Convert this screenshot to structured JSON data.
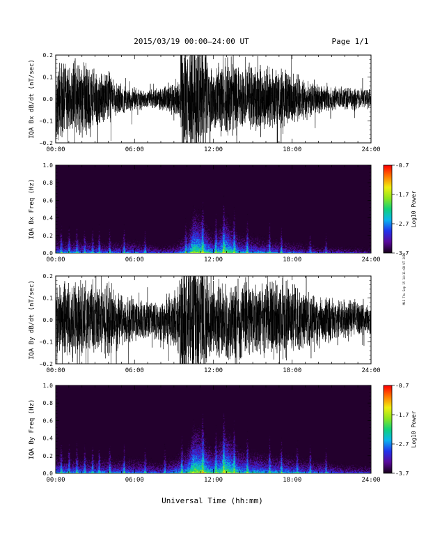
{
  "header": {
    "title": "2015/03/19  00:00–24:00 UT",
    "page_label": "Page 1/1"
  },
  "side_stamp": "ML1 Thu Sep 15 14:11:08 UT 2016",
  "xaxis": {
    "label": "Universal Time (hh:mm)",
    "ticks": [
      "00:00",
      "06:00",
      "12:00",
      "18:00",
      "24:00"
    ]
  },
  "colors": {
    "trace": "#000000",
    "spectrogram_background": "#23002d",
    "colormap": [
      "#1a001e",
      "#5a0a9c",
      "#2233ee",
      "#0bb4ee",
      "#10d27a",
      "#8ee61e",
      "#f0ee10",
      "#ff7a00",
      "#ff0000"
    ]
  },
  "colorbar": {
    "label": "Log10 Power",
    "ticks": [
      "-0.7",
      "-1.7",
      "-2.7",
      "-3.7"
    ]
  },
  "chart_data": [
    {
      "type": "line",
      "name": "IQA Bx dB/dt",
      "ylabel": "IQA Bx dB/dt (nT/sec)",
      "ylim": [
        -0.2,
        0.2
      ],
      "yticks": [
        "0.2",
        "0.1",
        "0.0",
        "−0.1",
        "−0.2"
      ],
      "xlim_hours": [
        0,
        24
      ],
      "amplitude_envelope": {
        "hours": [
          0,
          0.5,
          1,
          1.5,
          2,
          2.5,
          3,
          3.5,
          4,
          4.5,
          5,
          5.5,
          6,
          6.5,
          7,
          7.5,
          8,
          8.5,
          9,
          9.5,
          10,
          10.5,
          11,
          11.5,
          12,
          12.5,
          13,
          13.5,
          14,
          14.5,
          15,
          15.5,
          16,
          16.5,
          17,
          17.5,
          18,
          18.5,
          19,
          19.5,
          20,
          20.5,
          21,
          21.5,
          22,
          22.5,
          23,
          23.5,
          24
        ],
        "values": [
          0.2,
          0.2,
          0.2,
          0.2,
          0.2,
          0.2,
          0.16,
          0.12,
          0.14,
          0.09,
          0.08,
          0.06,
          0.06,
          0.05,
          0.05,
          0.05,
          0.06,
          0.07,
          0.08,
          0.1,
          0.2,
          0.2,
          0.2,
          0.2,
          0.14,
          0.2,
          0.2,
          0.2,
          0.16,
          0.14,
          0.16,
          0.18,
          0.15,
          0.16,
          0.16,
          0.14,
          0.12,
          0.12,
          0.1,
          0.09,
          0.08,
          0.07,
          0.06,
          0.06,
          0.06,
          0.05,
          0.05,
          0.05,
          0.05
        ]
      },
      "saturated_band_hours": [
        9.5,
        11.5
      ]
    },
    {
      "type": "heatmap",
      "name": "IQA Bx Freq",
      "ylabel": "IQA Bx Freq (Hz)",
      "ylim": [
        0.0,
        1.0
      ],
      "yticks": [
        "1.0",
        "0.8",
        "0.6",
        "0.4",
        "0.2",
        "0.0"
      ],
      "xlim_hours": [
        0,
        24
      ],
      "value_label": "Log10 Power",
      "value_range": [
        -3.7,
        -0.7
      ],
      "low_freq_power_hours": [
        0,
        2,
        4,
        6,
        8,
        9,
        10,
        10.5,
        11,
        12,
        13,
        14,
        16,
        18,
        20,
        22,
        24
      ],
      "low_freq_power_values": [
        -2.6,
        -2.7,
        -2.8,
        -2.7,
        -3.0,
        -2.9,
        -2.4,
        -1.6,
        -1.8,
        -2.4,
        -1.8,
        -2.4,
        -2.6,
        -2.8,
        -3.0,
        -3.1,
        -3.2
      ],
      "broadband_bursts_hours": [
        0.4,
        1.0,
        1.6,
        2.2,
        2.8,
        3.3,
        4.1,
        5.2,
        6.8,
        9.9,
        11.2,
        12.2,
        12.8,
        13.6,
        14.6,
        16.3,
        17.2,
        19.4,
        20.6
      ]
    },
    {
      "type": "line",
      "name": "IQA By dB/dt",
      "ylabel": "IQA By dB/dt (nT/sec)",
      "ylim": [
        -0.2,
        0.2
      ],
      "yticks": [
        "0.2",
        "0.1",
        "0.0",
        "−0.1",
        "−0.2"
      ],
      "xlim_hours": [
        0,
        24
      ],
      "amplitude_envelope": {
        "hours": [
          0,
          0.5,
          1,
          1.5,
          2,
          2.5,
          3,
          3.5,
          4,
          4.5,
          5,
          5.5,
          6,
          6.5,
          7,
          7.5,
          8,
          8.5,
          9,
          9.5,
          10,
          10.5,
          11,
          11.5,
          12,
          12.5,
          13,
          13.5,
          14,
          14.5,
          15,
          15.5,
          16,
          16.5,
          17,
          17.5,
          18,
          18.5,
          19,
          19.5,
          20,
          20.5,
          21,
          21.5,
          22,
          22.5,
          23,
          23.5,
          24
        ],
        "values": [
          0.2,
          0.2,
          0.2,
          0.2,
          0.2,
          0.2,
          0.2,
          0.16,
          0.2,
          0.16,
          0.14,
          0.12,
          0.12,
          0.1,
          0.1,
          0.1,
          0.11,
          0.14,
          0.16,
          0.2,
          0.2,
          0.2,
          0.2,
          0.2,
          0.2,
          0.2,
          0.2,
          0.2,
          0.2,
          0.18,
          0.18,
          0.2,
          0.2,
          0.2,
          0.2,
          0.2,
          0.18,
          0.16,
          0.14,
          0.14,
          0.12,
          0.12,
          0.12,
          0.1,
          0.1,
          0.1,
          0.1,
          0.08,
          0.08
        ]
      },
      "saturated_band_hours": [
        9.5,
        11.5
      ]
    },
    {
      "type": "heatmap",
      "name": "IQA By Freq",
      "ylabel": "IQA By Freq (Hz)",
      "ylim": [
        0.0,
        1.0
      ],
      "yticks": [
        "1.0",
        "0.8",
        "0.6",
        "0.4",
        "0.2",
        "0.0"
      ],
      "xlim_hours": [
        0,
        24
      ],
      "value_label": "Log10 Power",
      "value_range": [
        -3.7,
        -0.7
      ],
      "low_freq_power_hours": [
        0,
        2,
        4,
        6,
        8,
        9,
        10,
        10.5,
        11,
        12,
        13,
        14,
        16,
        18,
        20,
        22,
        24
      ],
      "low_freq_power_values": [
        -2.5,
        -2.6,
        -2.6,
        -2.6,
        -2.8,
        -2.5,
        -2.2,
        -1.5,
        -1.6,
        -2.2,
        -1.6,
        -2.2,
        -2.4,
        -2.5,
        -2.7,
        -2.9,
        -3.0
      ],
      "broadband_bursts_hours": [
        0.4,
        1.0,
        1.6,
        2.2,
        2.8,
        3.3,
        4.1,
        5.2,
        6.8,
        8.3,
        9.6,
        11.2,
        12.2,
        12.8,
        13.6,
        14.6,
        16.3,
        17.2,
        18.4,
        19.4,
        20.6
      ]
    }
  ]
}
